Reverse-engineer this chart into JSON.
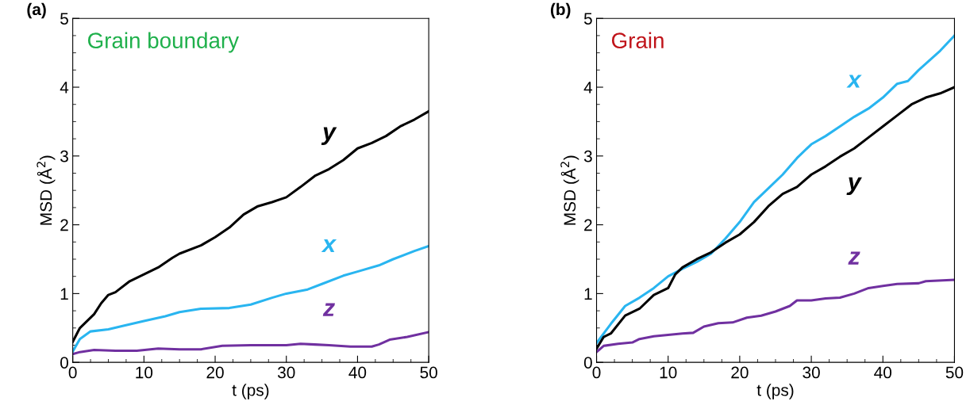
{
  "chart_data": [
    {
      "type": "line",
      "title": "Grain boundary",
      "xlabel": "t (ps)",
      "ylabel": "MSD (Å$^{2}$)",
      "xlim": [
        0,
        50
      ],
      "ylim": [
        0,
        5
      ],
      "xticks": [
        0,
        10,
        20,
        30,
        40,
        50
      ],
      "yticks": [
        0,
        1,
        2,
        3,
        4,
        5
      ],
      "grid": false,
      "legend": false,
      "annotations": [
        "(a)"
      ],
      "series": [
        {
          "name": "y",
          "color": "#000000",
          "x": [
            0,
            1,
            2,
            3,
            4,
            5,
            6,
            8,
            10,
            12,
            14,
            15,
            18,
            20,
            22,
            24,
            26,
            28,
            30,
            32,
            34,
            36,
            38,
            40,
            42,
            44,
            46,
            48,
            50
          ],
          "values": [
            0.3,
            0.5,
            0.6,
            0.7,
            0.86,
            0.98,
            1.02,
            1.18,
            1.28,
            1.38,
            1.52,
            1.58,
            1.7,
            1.82,
            1.96,
            2.15,
            2.27,
            2.33,
            2.4,
            2.55,
            2.71,
            2.81,
            2.94,
            3.11,
            3.19,
            3.29,
            3.43,
            3.53,
            3.65
          ]
        },
        {
          "name": "x",
          "color": "#29b5f0",
          "x": [
            0,
            1,
            2.5,
            5,
            7,
            10,
            13,
            15,
            18,
            22,
            25,
            28,
            30,
            33,
            35,
            38,
            40,
            43,
            45,
            48,
            50
          ],
          "values": [
            0.16,
            0.34,
            0.45,
            0.48,
            0.53,
            0.6,
            0.67,
            0.73,
            0.78,
            0.79,
            0.84,
            0.94,
            1.0,
            1.06,
            1.14,
            1.26,
            1.32,
            1.41,
            1.5,
            1.62,
            1.69
          ]
        },
        {
          "name": "z",
          "color": "#7030a0",
          "x": [
            0,
            1,
            3,
            6,
            9,
            12,
            15,
            18,
            21,
            25,
            30,
            32,
            34,
            36,
            39,
            42,
            43,
            44.5,
            47,
            50
          ],
          "values": [
            0.12,
            0.15,
            0.18,
            0.17,
            0.17,
            0.2,
            0.19,
            0.19,
            0.24,
            0.25,
            0.25,
            0.27,
            0.26,
            0.25,
            0.23,
            0.23,
            0.26,
            0.33,
            0.37,
            0.44
          ]
        }
      ]
    },
    {
      "type": "line",
      "title": "Grain",
      "xlabel": "t (ps)",
      "ylabel": "MSD (Å$^{2}$)",
      "xlim": [
        0,
        50
      ],
      "ylim": [
        0,
        5
      ],
      "xticks": [
        0,
        10,
        20,
        30,
        40,
        50
      ],
      "yticks": [
        0,
        1,
        2,
        3,
        4,
        5
      ],
      "grid": false,
      "legend": false,
      "annotations": [
        "(b)"
      ],
      "series": [
        {
          "name": "x",
          "color": "#29b5f0",
          "x": [
            0,
            2,
            4,
            6,
            8,
            10,
            12,
            14,
            16,
            18,
            20,
            22,
            24,
            26,
            28,
            30,
            32,
            34,
            36,
            38,
            40,
            42,
            43.5,
            45,
            48,
            50
          ],
          "values": [
            0.28,
            0.56,
            0.82,
            0.94,
            1.08,
            1.25,
            1.36,
            1.46,
            1.58,
            1.8,
            2.04,
            2.33,
            2.53,
            2.73,
            2.97,
            3.17,
            3.29,
            3.43,
            3.57,
            3.69,
            3.85,
            4.05,
            4.09,
            4.25,
            4.53,
            4.75
          ]
        },
        {
          "name": "y",
          "color": "#000000",
          "x": [
            0,
            1,
            2,
            4,
            6,
            8,
            10,
            11,
            12,
            14,
            16,
            18,
            20,
            22,
            24,
            26,
            28,
            30,
            32,
            34,
            36,
            38,
            40,
            42,
            44,
            46,
            48,
            50
          ],
          "values": [
            0.2,
            0.37,
            0.42,
            0.68,
            0.78,
            0.98,
            1.08,
            1.28,
            1.38,
            1.5,
            1.6,
            1.74,
            1.86,
            2.04,
            2.27,
            2.45,
            2.55,
            2.73,
            2.85,
            2.99,
            3.11,
            3.27,
            3.43,
            3.59,
            3.75,
            3.85,
            3.91,
            4.0
          ]
        },
        {
          "name": "z",
          "color": "#7030a0",
          "x": [
            0,
            1,
            3,
            5,
            6,
            8,
            10,
            12,
            13.5,
            15,
            17,
            19,
            21,
            23,
            25,
            27,
            28,
            30,
            32,
            34,
            36,
            38,
            40,
            42,
            45,
            46,
            50
          ],
          "values": [
            0.15,
            0.24,
            0.27,
            0.29,
            0.34,
            0.38,
            0.4,
            0.42,
            0.43,
            0.52,
            0.57,
            0.58,
            0.65,
            0.68,
            0.74,
            0.82,
            0.9,
            0.9,
            0.93,
            0.94,
            1.0,
            1.08,
            1.11,
            1.14,
            1.15,
            1.18,
            1.2
          ]
        }
      ]
    }
  ]
}
